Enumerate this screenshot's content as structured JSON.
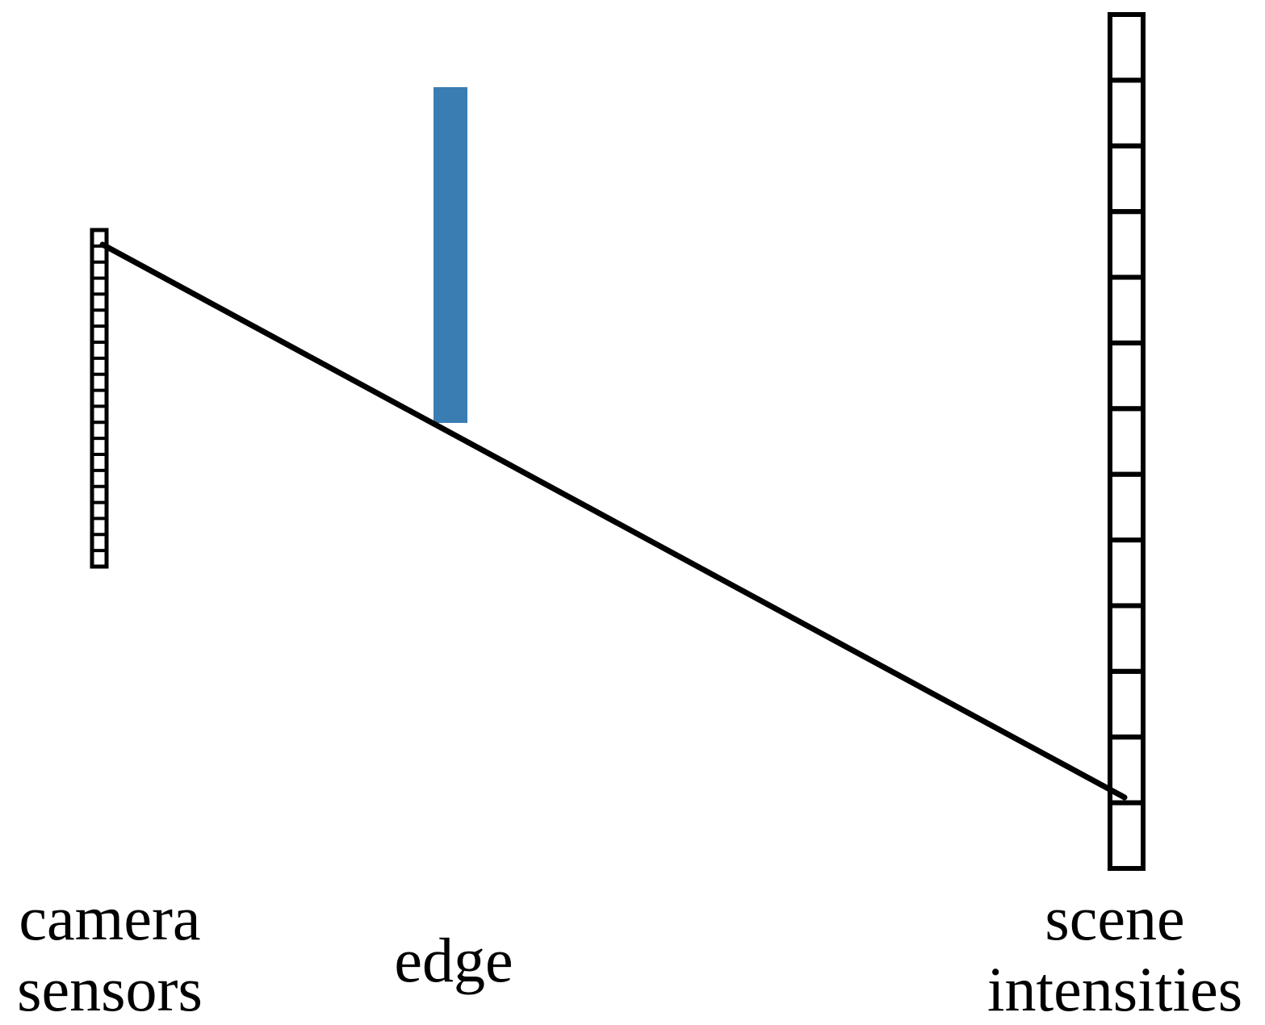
{
  "diagram": {
    "labels": {
      "camera_line1": "camera",
      "camera_line2": "sensors",
      "edge": "edge",
      "scene_line1": "scene",
      "scene_line2": "intensities"
    },
    "colors": {
      "edge_occluder": "#3a7db2",
      "stroke": "#000000",
      "background": "#ffffff"
    },
    "components": {
      "camera_sensor_cells": 21,
      "scene_intensity_cells": 13
    }
  }
}
